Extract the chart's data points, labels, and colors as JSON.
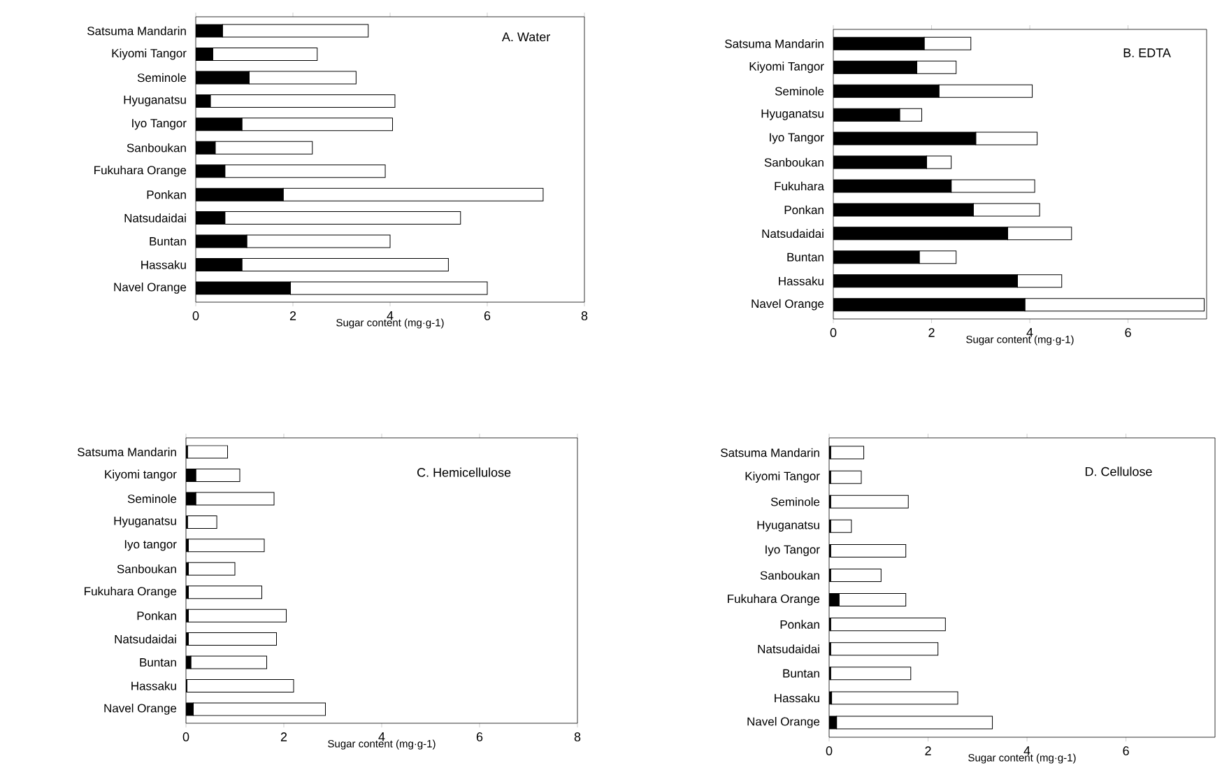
{
  "chart_data": [
    {
      "type": "bar",
      "orientation": "horizontal",
      "stacked": true,
      "title": "A. Water",
      "xlabel": "Sugar content (mg·g-1)",
      "categories": [
        "Satsuma Mandarin",
        "Kiyomi Tangor",
        "Seminole",
        "Hyuganatsu",
        "Iyo Tangor",
        "Sanboukan",
        "Fukuhara Orange",
        "Ponkan",
        "Natsudaidai",
        "Buntan",
        "Hassaku",
        "Navel Orange"
      ],
      "xlim": [
        0,
        8
      ],
      "xticks": [
        0,
        2,
        4,
        6,
        8
      ],
      "series": [
        {
          "color": "#000000",
          "values": [
            0.55,
            0.35,
            1.1,
            0.3,
            0.95,
            0.4,
            0.6,
            1.8,
            0.6,
            1.05,
            0.95,
            1.95
          ]
        },
        {
          "color": "#ffffff",
          "values": [
            3.0,
            2.15,
            2.2,
            3.8,
            3.1,
            2.0,
            3.3,
            5.35,
            4.85,
            2.95,
            4.25,
            4.05
          ]
        }
      ]
    },
    {
      "type": "bar",
      "orientation": "horizontal",
      "stacked": true,
      "title": "B. EDTA",
      "xlabel": "Sugar content (mg·g-1)",
      "categories": [
        "Satsuma Mandarin",
        "Kiyomi Tangor",
        "Seminole",
        "Hyuganatsu",
        "Iyo Tangor",
        "Sanboukan",
        "Fukuhara",
        "Ponkan",
        "Natsudaidai",
        "Buntan",
        "Hassaku",
        "Navel Orange"
      ],
      "xlim": [
        0,
        7.6
      ],
      "xticks": [
        0,
        2,
        4,
        6
      ],
      "series": [
        {
          "color": "#000000",
          "values": [
            1.85,
            1.7,
            2.15,
            1.35,
            2.9,
            1.9,
            2.4,
            2.85,
            3.55,
            1.75,
            3.75,
            3.9
          ]
        },
        {
          "color": "#ffffff",
          "values": [
            0.95,
            0.8,
            1.9,
            0.45,
            1.25,
            0.5,
            1.7,
            1.35,
            1.3,
            0.75,
            0.9,
            3.65
          ]
        }
      ]
    },
    {
      "type": "bar",
      "orientation": "horizontal",
      "stacked": true,
      "title": "C. Hemicellulose",
      "xlabel": "Sugar content (mg·g-1)",
      "categories": [
        "Satsuma Mandarin",
        "Kiyomi tangor",
        "Seminole",
        "Hyuganatsu",
        "Iyo tangor",
        "Sanboukan",
        "Fukuhara Orange",
        "Ponkan",
        "Natsudaidai",
        "Buntan",
        "Hassaku",
        "Navel Orange"
      ],
      "xlim": [
        0,
        8
      ],
      "xticks": [
        0,
        2,
        4,
        6,
        8
      ],
      "series": [
        {
          "color": "#000000",
          "values": [
            0.03,
            0.2,
            0.2,
            0.03,
            0.05,
            0.05,
            0.05,
            0.05,
            0.05,
            0.1,
            0.02,
            0.15
          ]
        },
        {
          "color": "#ffffff",
          "values": [
            0.82,
            0.9,
            1.6,
            0.6,
            1.55,
            0.95,
            1.5,
            2.0,
            1.8,
            1.55,
            2.18,
            2.7
          ]
        }
      ]
    },
    {
      "type": "bar",
      "orientation": "horizontal",
      "stacked": true,
      "title": "D. Cellulose",
      "xlabel": "Sugar content (mg·g-1)",
      "categories": [
        "Satsuma Mandarin",
        "Kiyomi Tangor",
        "Seminole",
        "Hyuganatsu",
        "Iyo Tangor",
        "Sanboukan",
        "Fukuhara Orange",
        "Ponkan",
        "Natsudaidai",
        "Buntan",
        "Hassaku",
        "Navel Orange"
      ],
      "xlim": [
        0,
        7.8
      ],
      "xticks": [
        0,
        2,
        4,
        6
      ],
      "series": [
        {
          "color": "#000000",
          "values": [
            0.03,
            0.03,
            0.03,
            0.03,
            0.03,
            0.03,
            0.2,
            0.03,
            0.03,
            0.03,
            0.05,
            0.15
          ]
        },
        {
          "color": "#ffffff",
          "values": [
            0.67,
            0.62,
            1.57,
            0.42,
            1.52,
            1.02,
            1.35,
            2.32,
            2.17,
            1.62,
            2.55,
            3.15
          ]
        }
      ]
    }
  ]
}
